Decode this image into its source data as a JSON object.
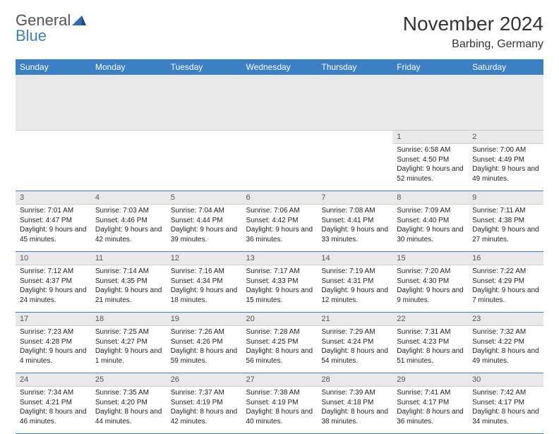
{
  "brand": {
    "part1": "General",
    "part2": "Blue"
  },
  "title": "November 2024",
  "location": "Barbing, Germany",
  "colors": {
    "header_bg": "#3b7fc4",
    "header_text": "#ffffff",
    "daynum_bg": "#e9e9e9",
    "grid_line": "#3b7fc4",
    "text": "#222222",
    "page_bg": "#ffffff"
  },
  "weekdays": [
    "Sunday",
    "Monday",
    "Tuesday",
    "Wednesday",
    "Thursday",
    "Friday",
    "Saturday"
  ],
  "weeks": [
    [
      {
        "n": "",
        "sr": "",
        "ss": "",
        "dl": ""
      },
      {
        "n": "",
        "sr": "",
        "ss": "",
        "dl": ""
      },
      {
        "n": "",
        "sr": "",
        "ss": "",
        "dl": ""
      },
      {
        "n": "",
        "sr": "",
        "ss": "",
        "dl": ""
      },
      {
        "n": "",
        "sr": "",
        "ss": "",
        "dl": ""
      },
      {
        "n": "1",
        "sr": "Sunrise: 6:58 AM",
        "ss": "Sunset: 4:50 PM",
        "dl": "Daylight: 9 hours and 52 minutes."
      },
      {
        "n": "2",
        "sr": "Sunrise: 7:00 AM",
        "ss": "Sunset: 4:49 PM",
        "dl": "Daylight: 9 hours and 49 minutes."
      }
    ],
    [
      {
        "n": "3",
        "sr": "Sunrise: 7:01 AM",
        "ss": "Sunset: 4:47 PM",
        "dl": "Daylight: 9 hours and 45 minutes."
      },
      {
        "n": "4",
        "sr": "Sunrise: 7:03 AM",
        "ss": "Sunset: 4:46 PM",
        "dl": "Daylight: 9 hours and 42 minutes."
      },
      {
        "n": "5",
        "sr": "Sunrise: 7:04 AM",
        "ss": "Sunset: 4:44 PM",
        "dl": "Daylight: 9 hours and 39 minutes."
      },
      {
        "n": "6",
        "sr": "Sunrise: 7:06 AM",
        "ss": "Sunset: 4:42 PM",
        "dl": "Daylight: 9 hours and 36 minutes."
      },
      {
        "n": "7",
        "sr": "Sunrise: 7:08 AM",
        "ss": "Sunset: 4:41 PM",
        "dl": "Daylight: 9 hours and 33 minutes."
      },
      {
        "n": "8",
        "sr": "Sunrise: 7:09 AM",
        "ss": "Sunset: 4:40 PM",
        "dl": "Daylight: 9 hours and 30 minutes."
      },
      {
        "n": "9",
        "sr": "Sunrise: 7:11 AM",
        "ss": "Sunset: 4:38 PM",
        "dl": "Daylight: 9 hours and 27 minutes."
      }
    ],
    [
      {
        "n": "10",
        "sr": "Sunrise: 7:12 AM",
        "ss": "Sunset: 4:37 PM",
        "dl": "Daylight: 9 hours and 24 minutes."
      },
      {
        "n": "11",
        "sr": "Sunrise: 7:14 AM",
        "ss": "Sunset: 4:35 PM",
        "dl": "Daylight: 9 hours and 21 minutes."
      },
      {
        "n": "12",
        "sr": "Sunrise: 7:16 AM",
        "ss": "Sunset: 4:34 PM",
        "dl": "Daylight: 9 hours and 18 minutes."
      },
      {
        "n": "13",
        "sr": "Sunrise: 7:17 AM",
        "ss": "Sunset: 4:33 PM",
        "dl": "Daylight: 9 hours and 15 minutes."
      },
      {
        "n": "14",
        "sr": "Sunrise: 7:19 AM",
        "ss": "Sunset: 4:31 PM",
        "dl": "Daylight: 9 hours and 12 minutes."
      },
      {
        "n": "15",
        "sr": "Sunrise: 7:20 AM",
        "ss": "Sunset: 4:30 PM",
        "dl": "Daylight: 9 hours and 9 minutes."
      },
      {
        "n": "16",
        "sr": "Sunrise: 7:22 AM",
        "ss": "Sunset: 4:29 PM",
        "dl": "Daylight: 9 hours and 7 minutes."
      }
    ],
    [
      {
        "n": "17",
        "sr": "Sunrise: 7:23 AM",
        "ss": "Sunset: 4:28 PM",
        "dl": "Daylight: 9 hours and 4 minutes."
      },
      {
        "n": "18",
        "sr": "Sunrise: 7:25 AM",
        "ss": "Sunset: 4:27 PM",
        "dl": "Daylight: 9 hours and 1 minute."
      },
      {
        "n": "19",
        "sr": "Sunrise: 7:26 AM",
        "ss": "Sunset: 4:26 PM",
        "dl": "Daylight: 8 hours and 59 minutes."
      },
      {
        "n": "20",
        "sr": "Sunrise: 7:28 AM",
        "ss": "Sunset: 4:25 PM",
        "dl": "Daylight: 8 hours and 56 minutes."
      },
      {
        "n": "21",
        "sr": "Sunrise: 7:29 AM",
        "ss": "Sunset: 4:24 PM",
        "dl": "Daylight: 8 hours and 54 minutes."
      },
      {
        "n": "22",
        "sr": "Sunrise: 7:31 AM",
        "ss": "Sunset: 4:23 PM",
        "dl": "Daylight: 8 hours and 51 minutes."
      },
      {
        "n": "23",
        "sr": "Sunrise: 7:32 AM",
        "ss": "Sunset: 4:22 PM",
        "dl": "Daylight: 8 hours and 49 minutes."
      }
    ],
    [
      {
        "n": "24",
        "sr": "Sunrise: 7:34 AM",
        "ss": "Sunset: 4:21 PM",
        "dl": "Daylight: 8 hours and 46 minutes."
      },
      {
        "n": "25",
        "sr": "Sunrise: 7:35 AM",
        "ss": "Sunset: 4:20 PM",
        "dl": "Daylight: 8 hours and 44 minutes."
      },
      {
        "n": "26",
        "sr": "Sunrise: 7:37 AM",
        "ss": "Sunset: 4:19 PM",
        "dl": "Daylight: 8 hours and 42 minutes."
      },
      {
        "n": "27",
        "sr": "Sunrise: 7:38 AM",
        "ss": "Sunset: 4:19 PM",
        "dl": "Daylight: 8 hours and 40 minutes."
      },
      {
        "n": "28",
        "sr": "Sunrise: 7:39 AM",
        "ss": "Sunset: 4:18 PM",
        "dl": "Daylight: 8 hours and 38 minutes."
      },
      {
        "n": "29",
        "sr": "Sunrise: 7:41 AM",
        "ss": "Sunset: 4:17 PM",
        "dl": "Daylight: 8 hours and 36 minutes."
      },
      {
        "n": "30",
        "sr": "Sunrise: 7:42 AM",
        "ss": "Sunset: 4:17 PM",
        "dl": "Daylight: 8 hours and 34 minutes."
      }
    ]
  ]
}
